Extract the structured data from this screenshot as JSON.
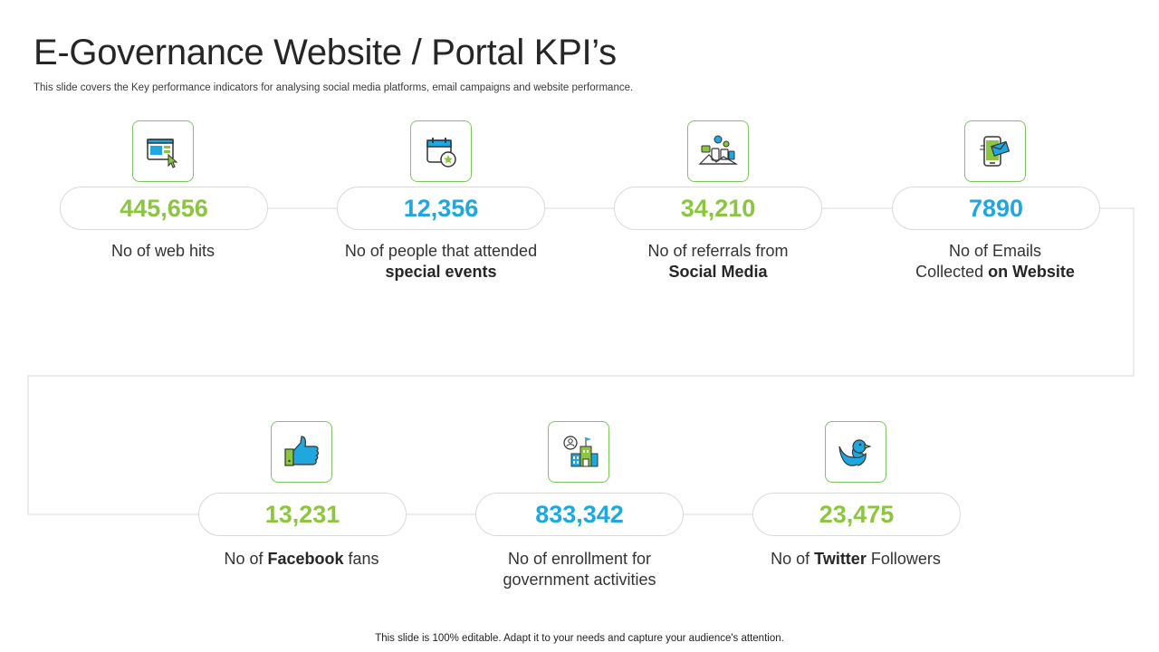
{
  "title": "E-Governance Website / Portal KPI’s",
  "subtitle": "This slide covers the Key performance indicators for analysing social media platforms, email campaigns and website performance.",
  "footer": "This slide is 100% editable. Adapt it to your needs and capture your audience's attention.",
  "colors": {
    "green": "#8cc63f",
    "blue": "#1fa8df",
    "icon_border": "#7cc55f",
    "connector": "#d9d9d9"
  },
  "kpis": [
    {
      "value": "445,656",
      "color": "green",
      "icon": "web-browser-click-icon",
      "label_plain": "No of web hits",
      "label_line2": ""
    },
    {
      "value": "12,356",
      "color": "blue",
      "icon": "calendar-star-icon",
      "label_plain": "No of people that attended",
      "label_line2": "special events"
    },
    {
      "value": "34,210",
      "color": "green",
      "icon": "social-network-icon",
      "label_plain": "No of referrals from",
      "label_line2": "Social Media"
    },
    {
      "value": "7890",
      "color": "blue",
      "icon": "mobile-email-icon",
      "label_plain": "No of Emails",
      "label_pre2": "Collected ",
      "label_line2": "on Website"
    },
    {
      "value": "13,231",
      "color": "green",
      "icon": "thumbs-up-icon",
      "label_pre": "No of ",
      "label_bold": "Facebook",
      "label_post": " fans"
    },
    {
      "value": "833,342",
      "color": "blue",
      "icon": "government-building-icon",
      "label_plain": "No of enrollment for",
      "label_line2": "government activities"
    },
    {
      "value": "23,475",
      "color": "green",
      "icon": "twitter-bird-icon",
      "label_pre": "No of ",
      "label_bold": "Twitter",
      "label_post": " Followers"
    }
  ]
}
